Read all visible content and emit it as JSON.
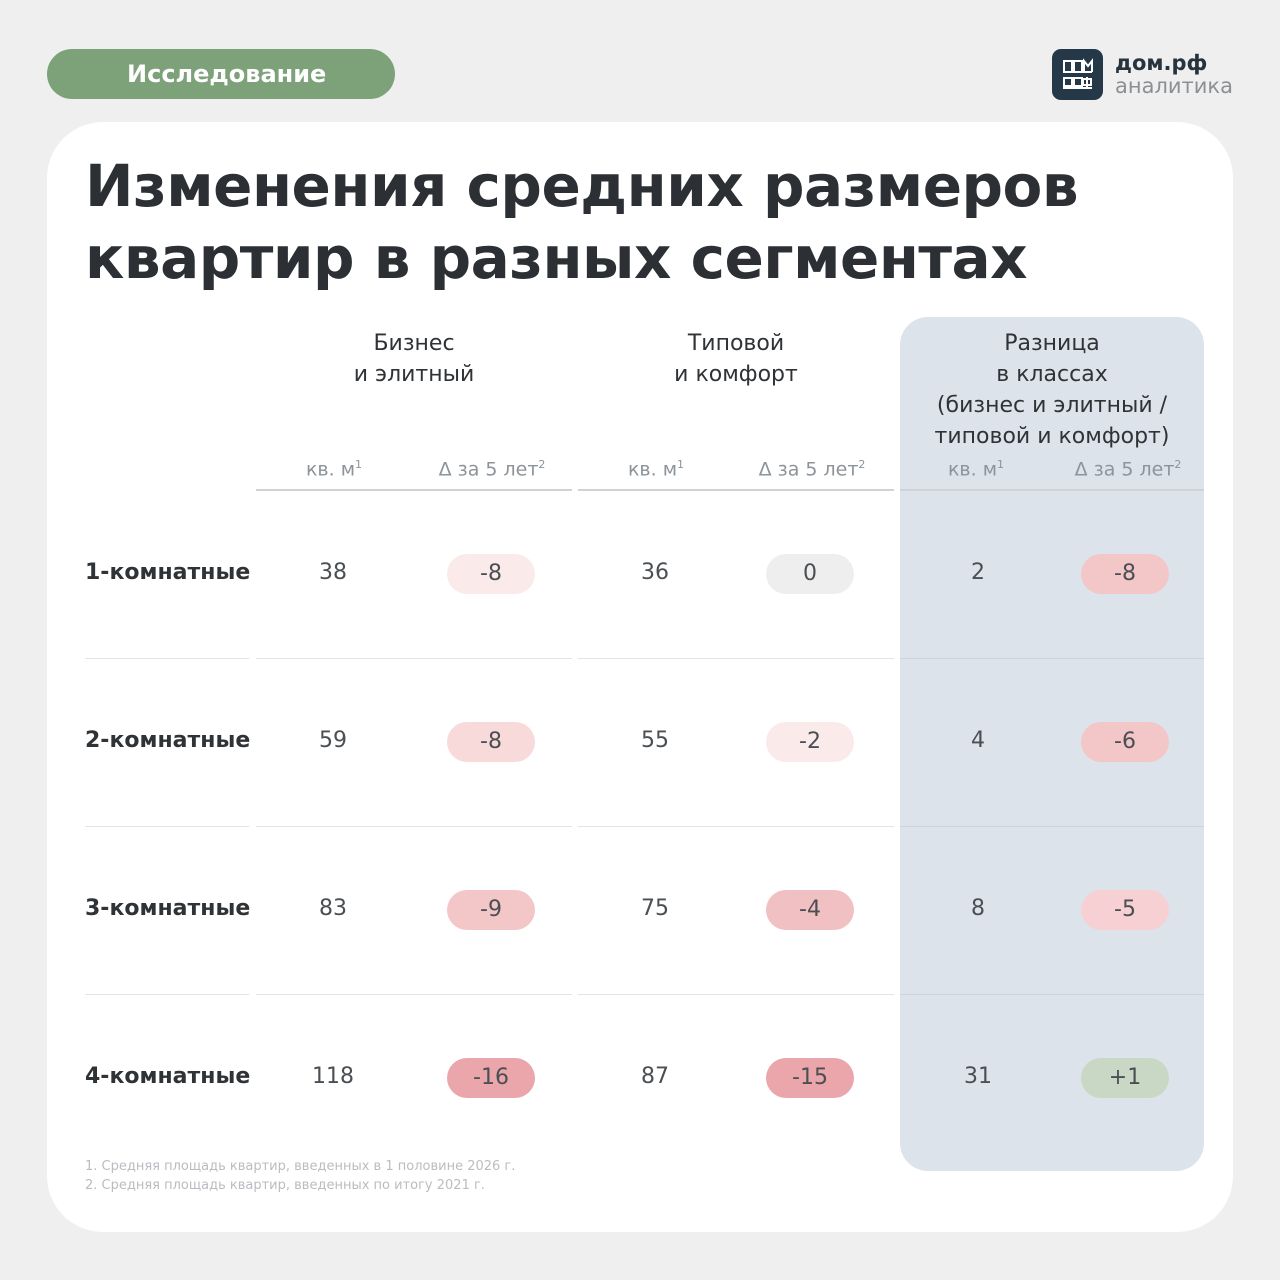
{
  "tag": "Исследование",
  "logo": {
    "name": "дом.рф",
    "subtitle": "аналитика",
    "mark_text": "ДОМ РФ"
  },
  "title_line1": "Изменения средних размеров",
  "title_line2": "квартир в разных сегментах",
  "groups": {
    "business": [
      "Бизнес",
      "и элитный"
    ],
    "typical": [
      "Типовой",
      "и комфорт"
    ],
    "diff": [
      "Разница",
      "в классах",
      "(бизнес и элитный /",
      "типовой и комфорт)"
    ]
  },
  "subheaders": {
    "area": "кв. м",
    "area_note": "1",
    "delta": "Δ за 5 лет",
    "delta_note": "2"
  },
  "rows": [
    {
      "label": "1-комнатные",
      "business_area": "38",
      "business_delta": "-8",
      "typical_area": "36",
      "typical_delta": "0",
      "diff_area": "2",
      "diff_delta": "-8"
    },
    {
      "label": "2-комнатные",
      "business_area": "59",
      "business_delta": "-8",
      "typical_area": "55",
      "typical_delta": "-2",
      "diff_area": "4",
      "diff_delta": "-6"
    },
    {
      "label": "3-комнатные",
      "business_area": "83",
      "business_delta": "-9",
      "typical_area": "75",
      "typical_delta": "-4",
      "diff_area": "8",
      "diff_delta": "-5"
    },
    {
      "label": "4-комнатные",
      "business_area": "118",
      "business_delta": "-16",
      "typical_area": "87",
      "typical_delta": "-15",
      "diff_area": "31",
      "diff_delta": "+1"
    }
  ],
  "footnotes": [
    "1. Средняя площадь квартир, введенных в 1 половине 2026 г.",
    "2. Средняя площадь квартир, введенных по итогу 2021 г."
  ],
  "colors": {
    "tag_bg": "#7da27a",
    "highlight_panel": "#dde3ea",
    "pill_neutral": "#eeeeee",
    "pill_light": "#fbeaea",
    "pill_mid_light": "#f8dada",
    "pill_mid": "#f3c6c8",
    "pill_strong": "#eaa6aa",
    "pill_positive": "#c8d8c4"
  }
}
